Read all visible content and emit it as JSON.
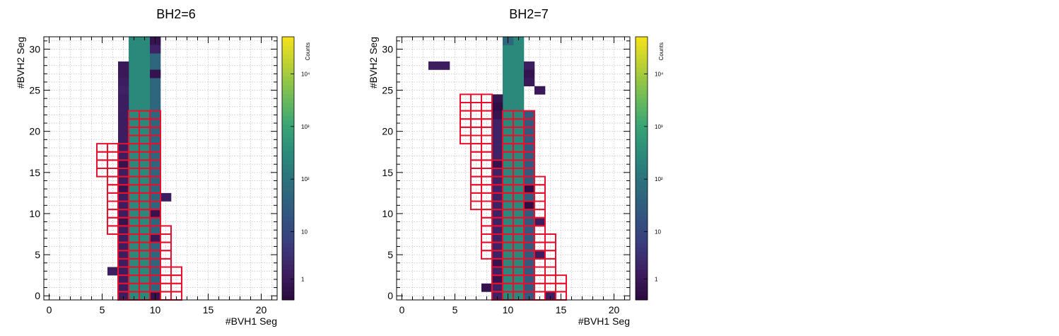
{
  "colors": {
    "box_outline": "#e8102c",
    "grid": "#c8c8c8",
    "frame": "#000000",
    "palette": [
      "#2b0a3d",
      "#3e1f63",
      "#3a3f7e",
      "#31587f",
      "#2c6f7c",
      "#2a8a7b",
      "#3aa574",
      "#72bd56",
      "#b7cf33",
      "#f5e11c"
    ]
  },
  "chart_data": [
    {
      "type": "heatmap",
      "title": "BH2=6",
      "xlabel": "#BVH1 Seg",
      "ylabel": "#BVH2 Seg",
      "zlabel": "Counts",
      "xlim": [
        -0.5,
        21.5
      ],
      "ylim": [
        -0.5,
        31.5
      ],
      "x_ticks": [
        "0",
        "5",
        "10",
        "15",
        "20"
      ],
      "y_ticks": [
        "0",
        "5",
        "10",
        "15",
        "20",
        "25",
        "30"
      ],
      "z_scale": "log",
      "z_ticks": [
        "1",
        "10",
        "10²",
        "10³",
        "10⁴"
      ],
      "grid": true,
      "columns": [
        {
          "x": 7,
          "ymin": 0,
          "ymax": 22,
          "level": 0.1
        },
        {
          "x": 8,
          "ymin": 0,
          "ymax": 31,
          "level": 0.55
        },
        {
          "x": 9,
          "ymin": 0,
          "ymax": 31,
          "level": 0.55
        },
        {
          "x": 10,
          "ymin": 0,
          "ymax": 31,
          "level": 0.4
        }
      ],
      "cells": [
        {
          "x": 7,
          "y": 26,
          "level": 0.1
        },
        {
          "x": 7,
          "y": 25,
          "level": 0.12
        },
        {
          "x": 7,
          "y": 24,
          "level": 0.1
        },
        {
          "x": 7,
          "y": 23,
          "level": 0.1
        },
        {
          "x": 7,
          "y": 27,
          "level": 0.08
        },
        {
          "x": 7,
          "y": 28,
          "level": 0.08
        },
        {
          "x": 7,
          "y": 16,
          "level": 0.05
        },
        {
          "x": 7,
          "y": 13,
          "level": 0.05
        },
        {
          "x": 7,
          "y": 9,
          "level": 0.05
        },
        {
          "x": 10,
          "y": 31,
          "level": 0.05
        },
        {
          "x": 10,
          "y": 30,
          "level": 0.12
        },
        {
          "x": 10,
          "y": 27,
          "level": 0.05
        },
        {
          "x": 10,
          "y": 10,
          "level": 0.05
        },
        {
          "x": 10,
          "y": 7,
          "level": 0.08
        },
        {
          "x": 10,
          "y": 0,
          "level": 0.05
        },
        {
          "x": 11,
          "y": 12,
          "level": 0.1
        },
        {
          "x": 6,
          "y": 3,
          "level": 0.1
        }
      ],
      "boxes": [
        [
          5,
          18
        ],
        [
          6,
          18
        ],
        [
          7,
          18
        ],
        [
          5,
          17
        ],
        [
          6,
          17
        ],
        [
          7,
          17
        ],
        [
          5,
          16
        ],
        [
          6,
          16
        ],
        [
          7,
          16
        ],
        [
          5,
          15
        ],
        [
          6,
          15
        ],
        [
          7,
          15
        ],
        [
          6,
          14
        ],
        [
          7,
          14
        ],
        [
          6,
          13
        ],
        [
          7,
          13
        ],
        [
          6,
          12
        ],
        [
          7,
          12
        ],
        [
          6,
          11
        ],
        [
          7,
          11
        ],
        [
          6,
          10
        ],
        [
          7,
          10
        ],
        [
          6,
          9
        ],
        [
          7,
          9
        ],
        [
          6,
          8
        ],
        [
          7,
          8
        ],
        [
          7,
          7
        ],
        [
          7,
          6
        ],
        [
          7,
          5
        ],
        [
          7,
          4
        ],
        [
          7,
          3
        ],
        [
          7,
          2
        ],
        [
          7,
          1
        ],
        [
          7,
          0
        ],
        [
          8,
          22
        ],
        [
          9,
          22
        ],
        [
          10,
          22
        ],
        [
          8,
          21
        ],
        [
          9,
          21
        ],
        [
          10,
          21
        ],
        [
          8,
          20
        ],
        [
          9,
          20
        ],
        [
          10,
          20
        ],
        [
          8,
          19
        ],
        [
          9,
          19
        ],
        [
          10,
          19
        ],
        [
          8,
          18
        ],
        [
          9,
          18
        ],
        [
          10,
          18
        ],
        [
          8,
          17
        ],
        [
          9,
          17
        ],
        [
          10,
          17
        ],
        [
          8,
          16
        ],
        [
          9,
          16
        ],
        [
          10,
          16
        ],
        [
          8,
          15
        ],
        [
          9,
          15
        ],
        [
          10,
          15
        ],
        [
          8,
          14
        ],
        [
          9,
          14
        ],
        [
          10,
          14
        ],
        [
          8,
          13
        ],
        [
          9,
          13
        ],
        [
          10,
          13
        ],
        [
          8,
          12
        ],
        [
          9,
          12
        ],
        [
          10,
          12
        ],
        [
          8,
          11
        ],
        [
          9,
          11
        ],
        [
          10,
          11
        ],
        [
          8,
          10
        ],
        [
          9,
          10
        ],
        [
          10,
          10
        ],
        [
          8,
          9
        ],
        [
          9,
          9
        ],
        [
          10,
          9
        ],
        [
          8,
          8
        ],
        [
          9,
          8
        ],
        [
          10,
          8
        ],
        [
          11,
          8
        ],
        [
          8,
          7
        ],
        [
          9,
          7
        ],
        [
          10,
          7
        ],
        [
          11,
          7
        ],
        [
          8,
          6
        ],
        [
          9,
          6
        ],
        [
          10,
          6
        ],
        [
          11,
          6
        ],
        [
          8,
          5
        ],
        [
          9,
          5
        ],
        [
          10,
          5
        ],
        [
          11,
          5
        ],
        [
          8,
          4
        ],
        [
          9,
          4
        ],
        [
          10,
          4
        ],
        [
          11,
          4
        ],
        [
          8,
          3
        ],
        [
          9,
          3
        ],
        [
          10,
          3
        ],
        [
          11,
          3
        ],
        [
          12,
          3
        ],
        [
          8,
          2
        ],
        [
          9,
          2
        ],
        [
          10,
          2
        ],
        [
          11,
          2
        ],
        [
          12,
          2
        ],
        [
          8,
          1
        ],
        [
          9,
          1
        ],
        [
          10,
          1
        ],
        [
          11,
          1
        ],
        [
          12,
          1
        ],
        [
          8,
          0
        ],
        [
          9,
          0
        ],
        [
          10,
          0
        ],
        [
          11,
          0
        ],
        [
          12,
          0
        ]
      ]
    },
    {
      "type": "heatmap",
      "title": "BH2=7",
      "xlabel": "#BVH1 Seg",
      "ylabel": "#BVH2 Seg",
      "zlabel": "Counts",
      "xlim": [
        -0.5,
        21.5
      ],
      "ylim": [
        -0.5,
        31.5
      ],
      "x_ticks": [
        "0",
        "5",
        "10",
        "15",
        "20"
      ],
      "y_ticks": [
        "0",
        "5",
        "10",
        "15",
        "20",
        "25",
        "30"
      ],
      "z_scale": "log",
      "z_ticks": [
        "1",
        "10",
        "10²",
        "10³",
        "10⁴"
      ],
      "grid": true,
      "columns": [
        {
          "x": 9,
          "ymin": 0,
          "ymax": 22,
          "level": 0.12
        },
        {
          "x": 10,
          "ymin": 0,
          "ymax": 31,
          "level": 0.55
        },
        {
          "x": 11,
          "ymin": 0,
          "ymax": 31,
          "level": 0.55
        },
        {
          "x": 12,
          "ymin": 0,
          "ymax": 22,
          "level": 0.35
        }
      ],
      "cells": [
        {
          "x": 3,
          "y": 28,
          "level": 0.1
        },
        {
          "x": 4,
          "y": 28,
          "level": 0.1
        },
        {
          "x": 9,
          "y": 23,
          "level": 0.02
        },
        {
          "x": 9,
          "y": 24,
          "level": 0.05
        },
        {
          "x": 9,
          "y": 22,
          "level": 0.05
        },
        {
          "x": 12,
          "y": 28,
          "level": 0.1
        },
        {
          "x": 12,
          "y": 26,
          "level": 0.08
        },
        {
          "x": 13,
          "y": 25,
          "level": 0.08
        },
        {
          "x": 12,
          "y": 27,
          "level": 0.05
        },
        {
          "x": 10,
          "y": 31,
          "level": 0.4
        },
        {
          "x": 13,
          "y": 9,
          "level": 0.1
        },
        {
          "x": 13,
          "y": 5,
          "level": 0.1
        },
        {
          "x": 14,
          "y": 0,
          "level": 0.1
        },
        {
          "x": 8,
          "y": 1,
          "level": 0.05
        },
        {
          "x": 9,
          "y": 16,
          "level": 0.05
        },
        {
          "x": 9,
          "y": 4,
          "level": 0.05
        },
        {
          "x": 9,
          "y": 2,
          "level": 0.05
        },
        {
          "x": 12,
          "y": 11,
          "level": 0.02
        },
        {
          "x": 12,
          "y": 13,
          "level": 0.02
        }
      ],
      "boxes": [
        [
          6,
          24
        ],
        [
          7,
          24
        ],
        [
          8,
          24
        ],
        [
          6,
          23
        ],
        [
          7,
          23
        ],
        [
          8,
          23
        ],
        [
          6,
          22
        ],
        [
          7,
          22
        ],
        [
          8,
          22
        ],
        [
          6,
          21
        ],
        [
          7,
          21
        ],
        [
          8,
          21
        ],
        [
          6,
          20
        ],
        [
          7,
          20
        ],
        [
          8,
          20
        ],
        [
          6,
          19
        ],
        [
          7,
          19
        ],
        [
          8,
          19
        ],
        [
          7,
          18
        ],
        [
          8,
          18
        ],
        [
          7,
          17
        ],
        [
          8,
          17
        ],
        [
          7,
          16
        ],
        [
          8,
          16
        ],
        [
          9,
          16
        ],
        [
          7,
          15
        ],
        [
          8,
          15
        ],
        [
          9,
          15
        ],
        [
          7,
          14
        ],
        [
          8,
          14
        ],
        [
          9,
          14
        ],
        [
          7,
          13
        ],
        [
          8,
          13
        ],
        [
          9,
          13
        ],
        [
          7,
          12
        ],
        [
          8,
          12
        ],
        [
          9,
          12
        ],
        [
          7,
          11
        ],
        [
          8,
          11
        ],
        [
          9,
          11
        ],
        [
          8,
          10
        ],
        [
          9,
          10
        ],
        [
          8,
          9
        ],
        [
          9,
          9
        ],
        [
          8,
          8
        ],
        [
          9,
          8
        ],
        [
          8,
          7
        ],
        [
          9,
          7
        ],
        [
          8,
          6
        ],
        [
          9,
          6
        ],
        [
          8,
          5
        ],
        [
          9,
          5
        ],
        [
          9,
          4
        ],
        [
          9,
          3
        ],
        [
          9,
          2
        ],
        [
          9,
          1
        ],
        [
          9,
          0
        ],
        [
          10,
          22
        ],
        [
          11,
          22
        ],
        [
          12,
          22
        ],
        [
          10,
          21
        ],
        [
          11,
          21
        ],
        [
          12,
          21
        ],
        [
          10,
          20
        ],
        [
          11,
          20
        ],
        [
          12,
          20
        ],
        [
          10,
          19
        ],
        [
          11,
          19
        ],
        [
          12,
          19
        ],
        [
          10,
          18
        ],
        [
          11,
          18
        ],
        [
          12,
          18
        ],
        [
          10,
          17
        ],
        [
          11,
          17
        ],
        [
          12,
          17
        ],
        [
          10,
          16
        ],
        [
          11,
          16
        ],
        [
          12,
          16
        ],
        [
          10,
          15
        ],
        [
          11,
          15
        ],
        [
          12,
          15
        ],
        [
          10,
          14
        ],
        [
          11,
          14
        ],
        [
          12,
          14
        ],
        [
          13,
          14
        ],
        [
          10,
          13
        ],
        [
          11,
          13
        ],
        [
          12,
          13
        ],
        [
          13,
          13
        ],
        [
          10,
          12
        ],
        [
          11,
          12
        ],
        [
          12,
          12
        ],
        [
          13,
          12
        ],
        [
          10,
          11
        ],
        [
          11,
          11
        ],
        [
          12,
          11
        ],
        [
          13,
          11
        ],
        [
          10,
          10
        ],
        [
          11,
          10
        ],
        [
          12,
          10
        ],
        [
          13,
          10
        ],
        [
          10,
          9
        ],
        [
          11,
          9
        ],
        [
          12,
          9
        ],
        [
          13,
          9
        ],
        [
          10,
          8
        ],
        [
          11,
          8
        ],
        [
          12,
          8
        ],
        [
          13,
          8
        ],
        [
          10,
          7
        ],
        [
          11,
          7
        ],
        [
          12,
          7
        ],
        [
          13,
          7
        ],
        [
          14,
          7
        ],
        [
          10,
          6
        ],
        [
          11,
          6
        ],
        [
          12,
          6
        ],
        [
          13,
          6
        ],
        [
          14,
          6
        ],
        [
          10,
          5
        ],
        [
          11,
          5
        ],
        [
          12,
          5
        ],
        [
          13,
          5
        ],
        [
          14,
          5
        ],
        [
          10,
          4
        ],
        [
          11,
          4
        ],
        [
          12,
          4
        ],
        [
          13,
          4
        ],
        [
          14,
          4
        ],
        [
          10,
          3
        ],
        [
          11,
          3
        ],
        [
          12,
          3
        ],
        [
          13,
          3
        ],
        [
          14,
          3
        ],
        [
          10,
          2
        ],
        [
          11,
          2
        ],
        [
          12,
          2
        ],
        [
          13,
          2
        ],
        [
          14,
          2
        ],
        [
          15,
          2
        ],
        [
          10,
          1
        ],
        [
          11,
          1
        ],
        [
          12,
          1
        ],
        [
          13,
          1
        ],
        [
          14,
          1
        ],
        [
          15,
          1
        ],
        [
          10,
          0
        ],
        [
          11,
          0
        ],
        [
          12,
          0
        ],
        [
          13,
          0
        ],
        [
          14,
          0
        ],
        [
          15,
          0
        ]
      ]
    }
  ]
}
